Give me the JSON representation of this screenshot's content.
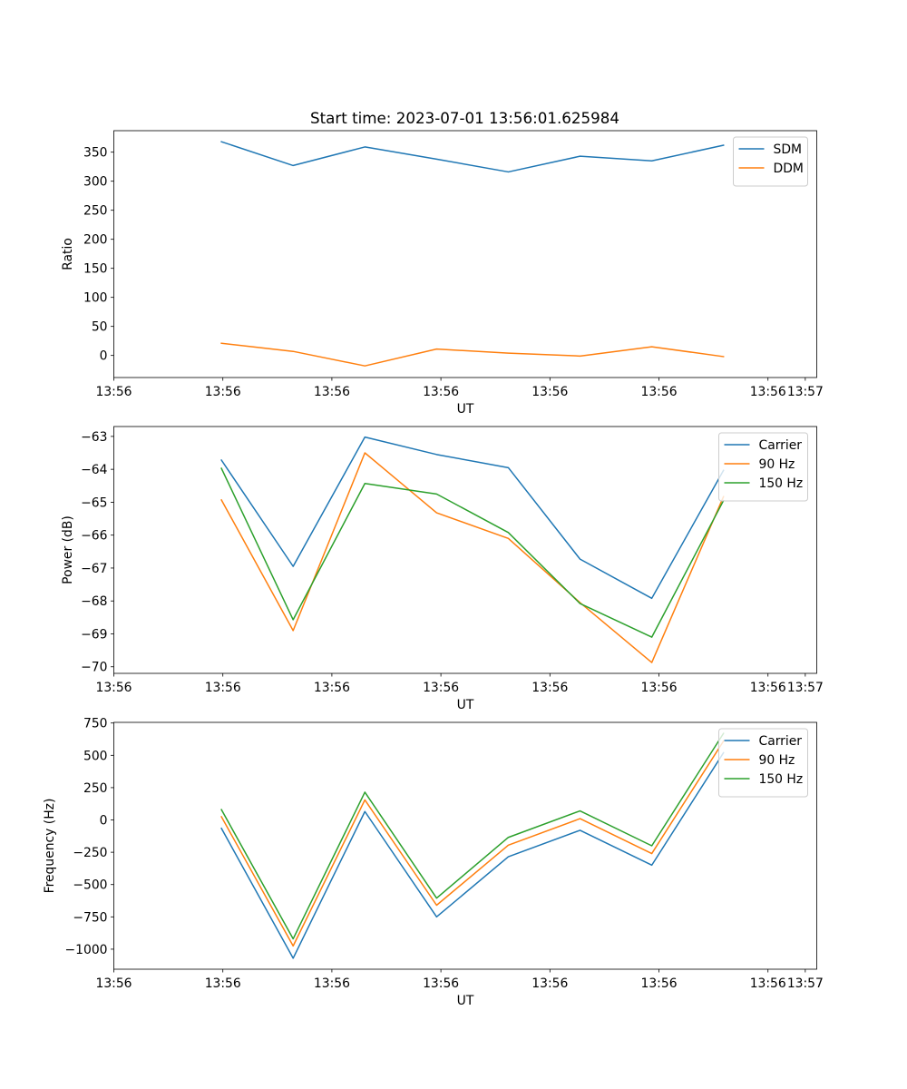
{
  "figure": {
    "title": "Start time: 2023-07-01 13:56:01.625984"
  },
  "chart_data": [
    {
      "type": "line",
      "title": "Start time: 2023-07-01 13:56:01.625984",
      "xlabel": "UT",
      "ylabel": "Ratio",
      "x": [
        1,
        2,
        3,
        4,
        5,
        6,
        7,
        8
      ],
      "xlim": [
        -0.5,
        9.3
      ],
      "ylim": [
        -38,
        387
      ],
      "yticks": [
        0,
        50,
        100,
        150,
        200,
        250,
        300,
        350
      ],
      "xticks": [
        -0.5,
        1.02,
        2.54,
        4.06,
        5.58,
        7.1,
        8.62
      ],
      "xtick_labels": [
        "13:56",
        "13:56",
        "13:56",
        "13:56",
        "13:56",
        "13:56",
        "13:56"
      ],
      "xtick_position": 9.14,
      "xtick_last_label": "13:57",
      "legend_position": "top-right",
      "series": [
        {
          "name": "SDM",
          "color": "#1f77b4",
          "values": [
            368,
            327,
            359,
            338,
            316,
            343,
            335,
            362
          ]
        },
        {
          "name": "DDM",
          "color": "#ff7f0e",
          "values": [
            21,
            7,
            -18,
            11,
            4,
            -1,
            15,
            -2
          ]
        }
      ]
    },
    {
      "type": "line",
      "xlabel": "UT",
      "ylabel": "Power (dB)",
      "x": [
        1,
        2,
        3,
        4,
        5,
        6,
        7,
        8
      ],
      "xlim": [
        -0.5,
        9.3
      ],
      "ylim": [
        -70.2,
        -62.7
      ],
      "yticks": [
        -70,
        -69,
        -68,
        -67,
        -66,
        -65,
        -64,
        -63
      ],
      "xticks": [
        -0.5,
        1.02,
        2.54,
        4.06,
        5.58,
        7.1,
        8.62
      ],
      "xtick_labels": [
        "13:56",
        "13:56",
        "13:56",
        "13:56",
        "13:56",
        "13:56",
        "13:56"
      ],
      "xtick_position": 9.14,
      "xtick_last_label": "13:57",
      "legend_position": "top-right",
      "series": [
        {
          "name": "Carrier",
          "color": "#1f77b4",
          "values": [
            -63.72,
            -66.95,
            -63.02,
            -63.55,
            -63.95,
            -66.73,
            -67.92,
            -64.03
          ]
        },
        {
          "name": "90 Hz",
          "color": "#ff7f0e",
          "values": [
            -64.93,
            -68.9,
            -63.5,
            -65.32,
            -66.1,
            -68.05,
            -69.87,
            -64.83
          ]
        },
        {
          "name": "150 Hz",
          "color": "#2ca02c",
          "values": [
            -63.97,
            -68.57,
            -64.43,
            -64.75,
            -65.92,
            -68.08,
            -69.1,
            -64.95
          ]
        }
      ]
    },
    {
      "type": "line",
      "xlabel": "UT",
      "ylabel": "Frequency (Hz)",
      "x": [
        1,
        2,
        3,
        4,
        5,
        6,
        7,
        8
      ],
      "xlim": [
        -0.5,
        9.3
      ],
      "ylim": [
        -1155,
        755
      ],
      "yticks": [
        -1000,
        -750,
        -500,
        -250,
        0,
        250,
        500,
        750
      ],
      "ytick_labels": [
        "−1000",
        "−750",
        "−500",
        "−250",
        "0",
        "250",
        "500",
        "750"
      ],
      "xticks": [
        -0.5,
        1.02,
        2.54,
        4.06,
        5.58,
        7.1,
        8.62
      ],
      "xtick_labels": [
        "13:56",
        "13:56",
        "13:56",
        "13:56",
        "13:56",
        "13:56",
        "13:56"
      ],
      "xtick_position": 9.14,
      "xtick_last_label": "13:57",
      "legend_position": "top-right",
      "series": [
        {
          "name": "Carrier",
          "color": "#1f77b4",
          "values": [
            -65,
            -1070,
            65,
            -750,
            -285,
            -80,
            -350,
            520
          ]
        },
        {
          "name": "90 Hz",
          "color": "#ff7f0e",
          "values": [
            25,
            -975,
            155,
            -660,
            -195,
            10,
            -260,
            610
          ]
        },
        {
          "name": "150 Hz",
          "color": "#2ca02c",
          "values": [
            80,
            -920,
            215,
            -605,
            -135,
            70,
            -200,
            670
          ]
        }
      ]
    }
  ]
}
